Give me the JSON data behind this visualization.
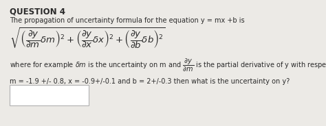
{
  "title": "QUESTION 4",
  "line1": "The propagation of uncertainty formula for the equation y = mx +b is",
  "formula": "$\\sqrt{\\left(\\dfrac{\\partial y}{\\partial m}\\delta m\\right)^2 + \\left(\\dfrac{\\partial y}{\\partial x}\\delta x\\right)^2 + \\left(\\dfrac{\\partial y}{\\partial b}\\delta b\\right)^2}$",
  "line3": "where for example $\\delta m$ is the uncertainty on m and $\\dfrac{\\partial y}{\\partial m}$ is the partial derivative of y with respect to m. If",
  "line4": "m = -1.9 +/- 0.8, x = -0.9+/-0.1 and b = 2+/-0.3 then what is the uncertainty on y?",
  "bg_color": "#eceae6",
  "text_color": "#2a2a2a",
  "title_fontsize": 8.5,
  "body_fontsize": 7.0,
  "formula_fontsize": 9.5,
  "box_facecolor": "#ffffff",
  "box_edgecolor": "#b0b0b0"
}
